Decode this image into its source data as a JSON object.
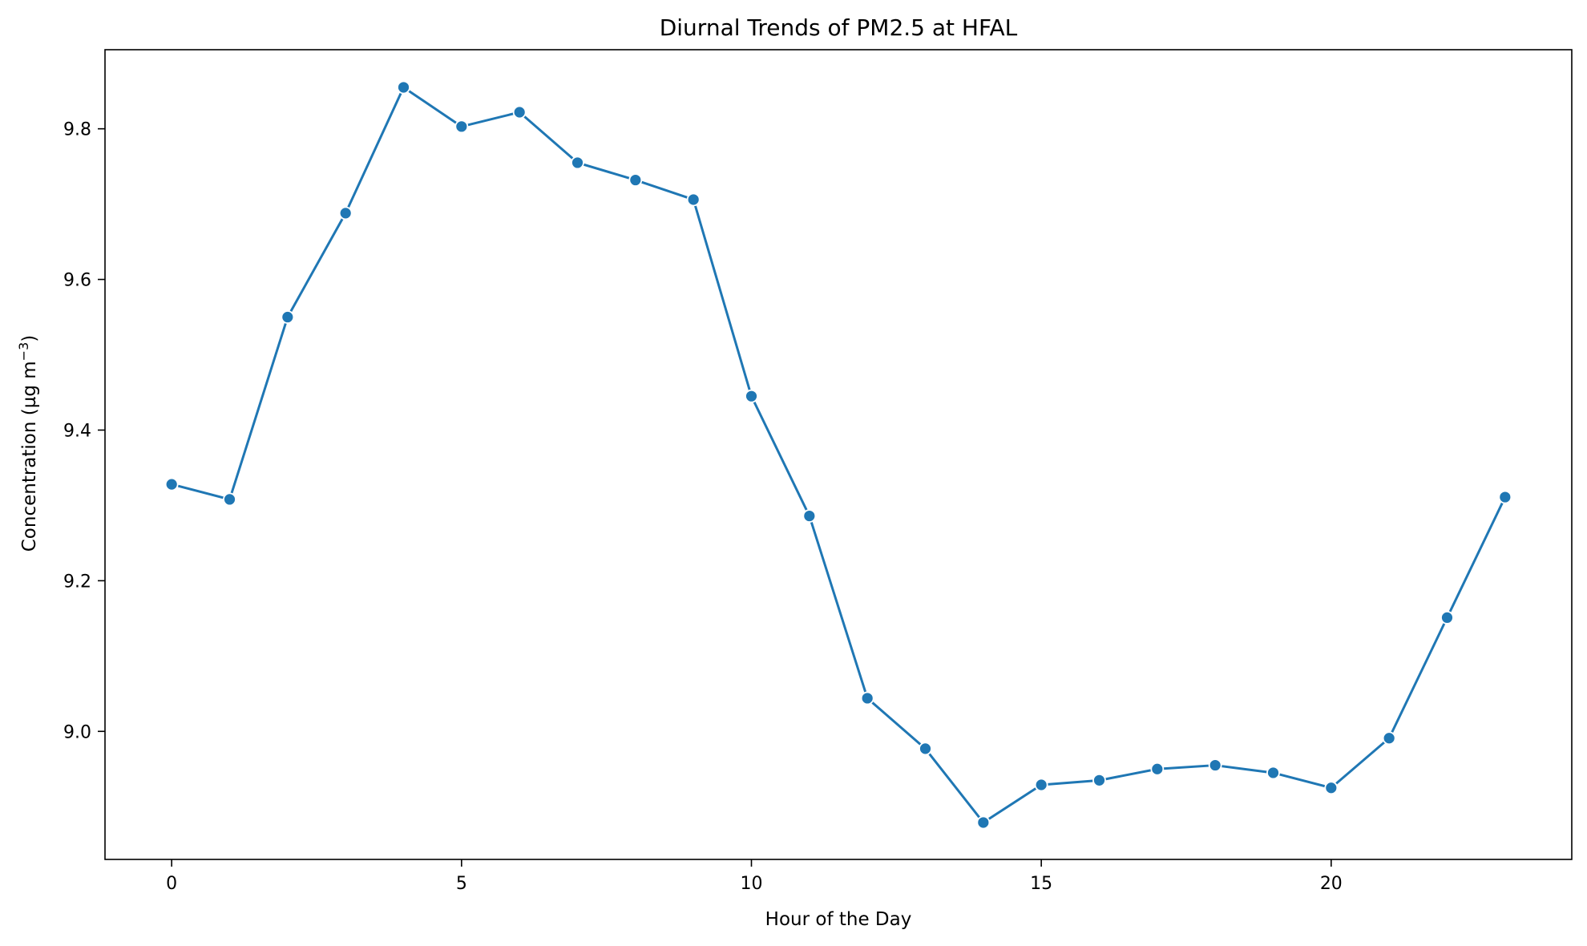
{
  "chart_data": {
    "type": "line",
    "title": "Diurnal Trends of PM2.5 at HFAL",
    "xlabel": "Hour of the Day",
    "ylabel_main": "Concentration (µg m",
    "ylabel_sup": "−3",
    "ylabel_end": ")",
    "xlim": [
      -1.15,
      24.15
    ],
    "ylim": [
      8.83,
      9.905
    ],
    "xticks": [
      0,
      5,
      10,
      15,
      20
    ],
    "xtick_labels": [
      "0",
      "5",
      "10",
      "15",
      "20"
    ],
    "yticks": [
      9.0,
      9.2,
      9.4,
      9.6,
      9.8
    ],
    "ytick_labels": [
      "9.0",
      "9.2",
      "9.4",
      "9.6",
      "9.8"
    ],
    "grid": false,
    "series": [
      {
        "color": "#1f77b4",
        "marker": "circle",
        "x": [
          0,
          1,
          2,
          3,
          4,
          5,
          6,
          7,
          8,
          9,
          10,
          11,
          12,
          13,
          14,
          15,
          16,
          17,
          18,
          19,
          20,
          21,
          22,
          23
        ],
        "y": [
          9.328,
          9.308,
          9.55,
          9.688,
          9.855,
          9.803,
          9.822,
          9.755,
          9.732,
          9.706,
          9.445,
          9.286,
          9.044,
          8.977,
          8.879,
          8.929,
          8.935,
          8.95,
          8.955,
          8.945,
          8.925,
          8.991,
          9.151,
          9.311
        ]
      }
    ]
  }
}
